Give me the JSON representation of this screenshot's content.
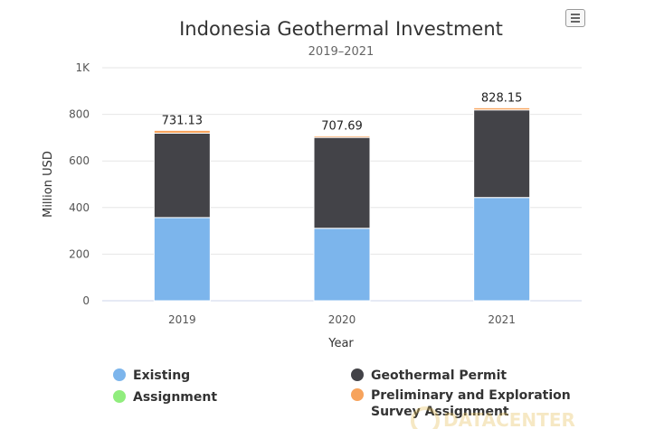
{
  "menu_icon": "hamburger-menu-icon",
  "watermark_text": "DATACENTER",
  "chart_data": {
    "type": "bar",
    "stacked": true,
    "title": "Indonesia Geothermal Investment",
    "subtitle": "2019–2021",
    "xlabel": "Year",
    "ylabel": "Million USD",
    "ylim": [
      0,
      1000
    ],
    "yticks": [
      "0",
      "200",
      "400",
      "600",
      "800",
      "1K"
    ],
    "ytick_values": [
      0,
      200,
      400,
      600,
      800,
      1000
    ],
    "grid": true,
    "legend_position": "bottom",
    "categories": [
      "2019",
      "2020",
      "2021"
    ],
    "series": [
      {
        "name": "Existing",
        "color": "#7cb5ec",
        "values": [
          357,
          311,
          443
        ]
      },
      {
        "name": "Geothermal Permit",
        "color": "#434348",
        "values": [
          362,
          390,
          376
        ]
      },
      {
        "name": "Assignment",
        "color": "#90ed7d",
        "values": [
          0,
          0,
          0
        ]
      },
      {
        "name": "Preliminary and Exploration Survey Assignment",
        "color": "#f7a35c",
        "values": [
          12.13,
          6.69,
          9.15
        ]
      }
    ],
    "totals": [
      "731.13",
      "707.69",
      "828.15"
    ]
  }
}
